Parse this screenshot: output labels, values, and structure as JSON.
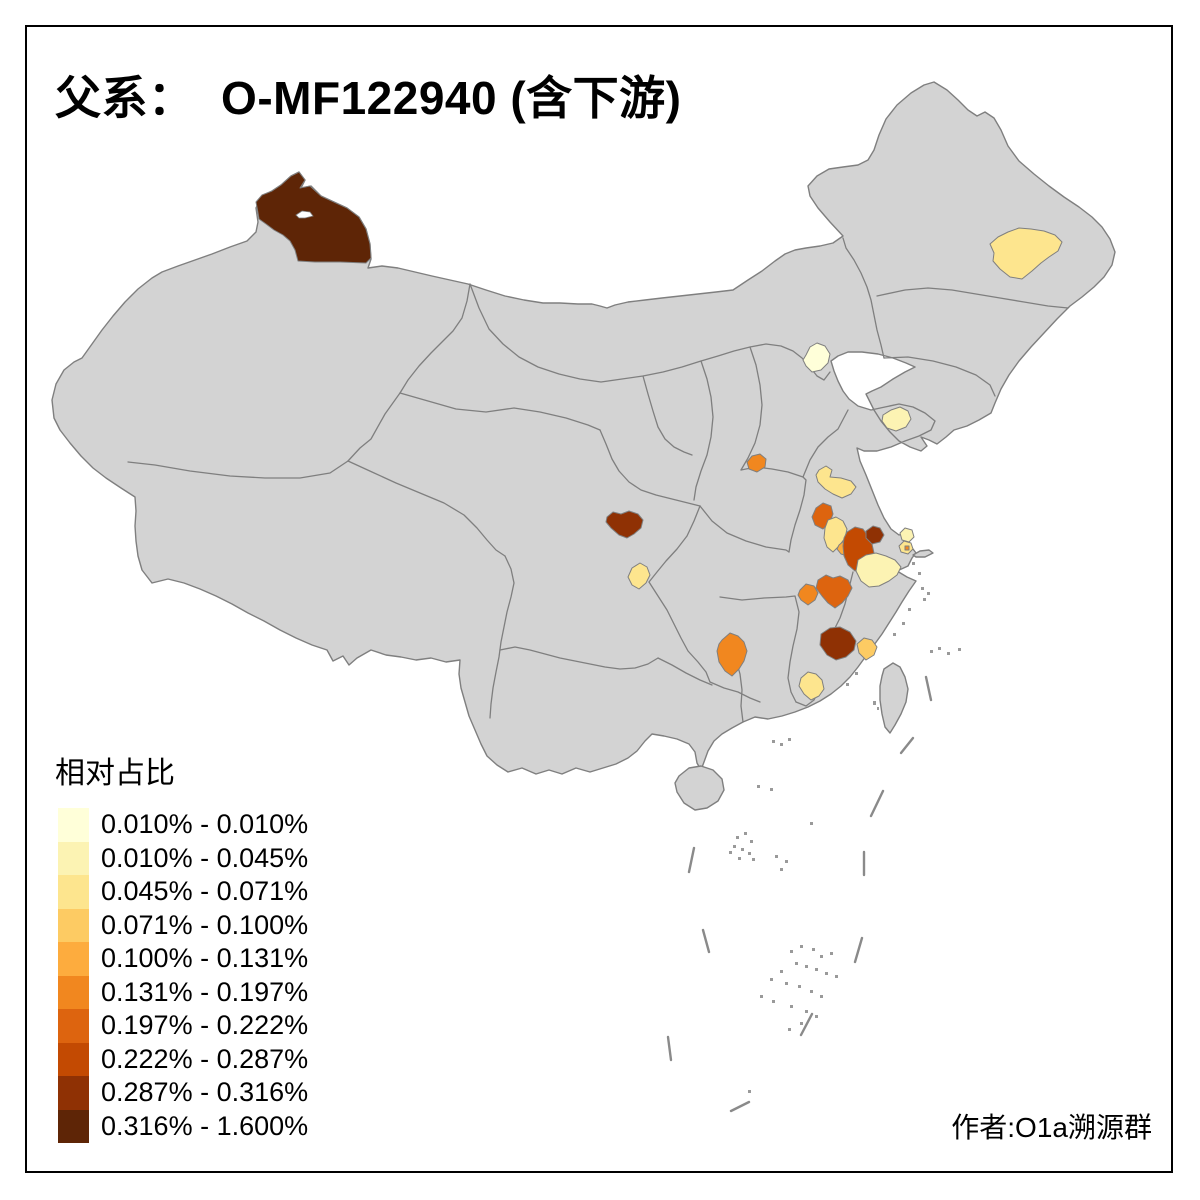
{
  "title": "父系：  O-MF122940 (含下游)",
  "attribution": "作者:O1a溯源群",
  "legend": {
    "title": "相对占比",
    "items": [
      {
        "label": "0.010% - 0.010%",
        "color": "#FFFFD9"
      },
      {
        "label": "0.010% - 0.045%",
        "color": "#FCF3B3"
      },
      {
        "label": "0.045% - 0.071%",
        "color": "#FDE58E"
      },
      {
        "label": "0.071% - 0.100%",
        "color": "#FDCB63"
      },
      {
        "label": "0.100% - 0.131%",
        "color": "#FDAC3E"
      },
      {
        "label": "0.131% - 0.197%",
        "color": "#F1871F"
      },
      {
        "label": "0.197% - 0.222%",
        "color": "#DD640F"
      },
      {
        "label": "0.222% - 0.287%",
        "color": "#C34A02"
      },
      {
        "label": "0.287% - 0.316%",
        "color": "#8F3104"
      },
      {
        "label": "0.316% - 1.600%",
        "color": "#5E2506"
      }
    ]
  },
  "map": {
    "land_color": "#d3d3d3",
    "border_color": "#7f7f7f",
    "sea_color": "#ffffff",
    "frame_color": "#000000"
  },
  "regions": [
    {
      "id": "north-xinjiang",
      "class": 10
    },
    {
      "id": "west-heilongjiang",
      "class": 3
    },
    {
      "id": "beijing",
      "class": 1
    },
    {
      "id": "shandong-peninsula",
      "class": 2
    },
    {
      "id": "north-henan",
      "class": 6
    },
    {
      "id": "north-jiangsu",
      "class": 3
    },
    {
      "id": "central-anhui",
      "class": 7
    },
    {
      "id": "south-anhui",
      "class": 3
    },
    {
      "id": "southeast-anhui",
      "class": 5
    },
    {
      "id": "nanjing-area",
      "class": 8
    },
    {
      "id": "mid-jiangsu",
      "class": 9
    },
    {
      "id": "north-zhejiang",
      "class": 2
    },
    {
      "id": "nantong-area",
      "class": 2
    },
    {
      "id": "shanghai-area",
      "class": 3
    },
    {
      "id": "shanghai-urban-dot",
      "class": 6
    },
    {
      "id": "chengdu-area",
      "class": 9
    },
    {
      "id": "south-sichuan",
      "class": 3
    },
    {
      "id": "southeast-hubei",
      "class": 6
    },
    {
      "id": "north-jiangxi",
      "class": 7
    },
    {
      "id": "central-hunan",
      "class": 6
    },
    {
      "id": "northwest-fujian",
      "class": 9
    },
    {
      "id": "northeast-fujian",
      "class": 4
    },
    {
      "id": "east-guangdong",
      "class": 3
    }
  ],
  "chart_data": {
    "type": "choropleth",
    "title": "父系：  O-MF122940 (含下游)",
    "legend_title": "相对占比",
    "classes": [
      "0.010% - 0.010%",
      "0.010% - 0.045%",
      "0.045% - 0.071%",
      "0.071% - 0.100%",
      "0.100% - 0.131%",
      "0.131% - 0.197%",
      "0.197% - 0.222%",
      "0.222% - 0.287%",
      "0.287% - 0.316%",
      "0.316% - 1.600%"
    ],
    "region_values": [
      {
        "id": "north-xinjiang",
        "range": "0.316% - 1.600%"
      },
      {
        "id": "west-heilongjiang",
        "range": "0.045% - 0.071%"
      },
      {
        "id": "beijing",
        "range": "0.010% - 0.010%"
      },
      {
        "id": "shandong-peninsula",
        "range": "0.010% - 0.045%"
      },
      {
        "id": "north-henan",
        "range": "0.131% - 0.197%"
      },
      {
        "id": "north-jiangsu",
        "range": "0.045% - 0.071%"
      },
      {
        "id": "central-anhui",
        "range": "0.197% - 0.222%"
      },
      {
        "id": "south-anhui",
        "range": "0.045% - 0.071%"
      },
      {
        "id": "southeast-anhui",
        "range": "0.100% - 0.131%"
      },
      {
        "id": "nanjing-area",
        "range": "0.222% - 0.287%"
      },
      {
        "id": "mid-jiangsu",
        "range": "0.287% - 0.316%"
      },
      {
        "id": "north-zhejiang",
        "range": "0.010% - 0.045%"
      },
      {
        "id": "nantong-area",
        "range": "0.010% - 0.045%"
      },
      {
        "id": "shanghai-area",
        "range": "0.045% - 0.071%"
      },
      {
        "id": "shanghai-urban-dot",
        "range": "0.131% - 0.197%"
      },
      {
        "id": "chengdu-area",
        "range": "0.287% - 0.316%"
      },
      {
        "id": "south-sichuan",
        "range": "0.045% - 0.071%"
      },
      {
        "id": "southeast-hubei",
        "range": "0.131% - 0.197%"
      },
      {
        "id": "north-jiangxi",
        "range": "0.197% - 0.222%"
      },
      {
        "id": "central-hunan",
        "range": "0.131% - 0.197%"
      },
      {
        "id": "northwest-fujian",
        "range": "0.287% - 0.316%"
      },
      {
        "id": "northeast-fujian",
        "range": "0.071% - 0.100%"
      },
      {
        "id": "east-guangdong",
        "range": "0.045% - 0.071%"
      }
    ]
  }
}
